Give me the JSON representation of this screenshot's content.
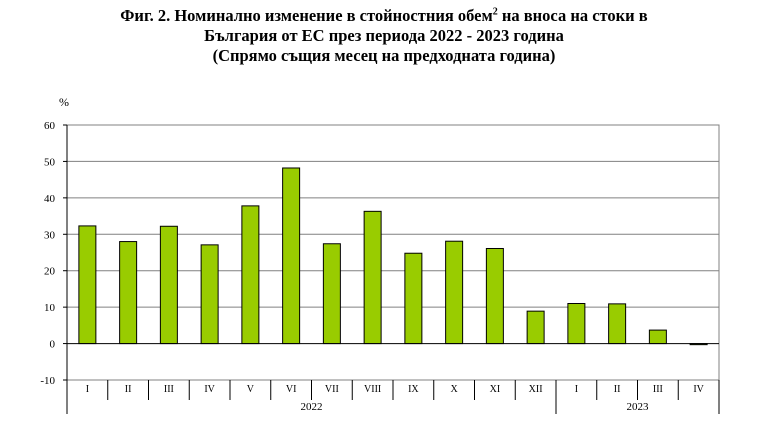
{
  "title": {
    "line1_prefix": "Фиг. 2. Номинално изменение в стойностния обем",
    "line1_sup": "2",
    "line1_suffix": " на вноса на стоки в",
    "line2": "България от ЕС през периода 2022 - 2023 година",
    "line3": "(Спрямо същия месец на предходната година)"
  },
  "chart_data": {
    "type": "bar",
    "ylabel": "%",
    "ylim": [
      -10,
      60
    ],
    "yticks": [
      -10,
      0,
      10,
      20,
      30,
      40,
      50,
      60
    ],
    "grid": true,
    "categories": [
      "I",
      "II",
      "III",
      "IV",
      "V",
      "VI",
      "VII",
      "VIII",
      "IX",
      "X",
      "XI",
      "XII",
      "I",
      "II",
      "III",
      "IV"
    ],
    "values": [
      32.3,
      28.0,
      32.2,
      27.1,
      37.8,
      48.2,
      27.4,
      36.3,
      24.8,
      28.1,
      26.1,
      8.9,
      11.0,
      10.9,
      3.7,
      -0.3
    ],
    "groups": [
      {
        "label": "2022",
        "start": 0,
        "end": 11
      },
      {
        "label": "2023",
        "start": 12,
        "end": 15
      }
    ],
    "bar_color": "#99cc00"
  }
}
